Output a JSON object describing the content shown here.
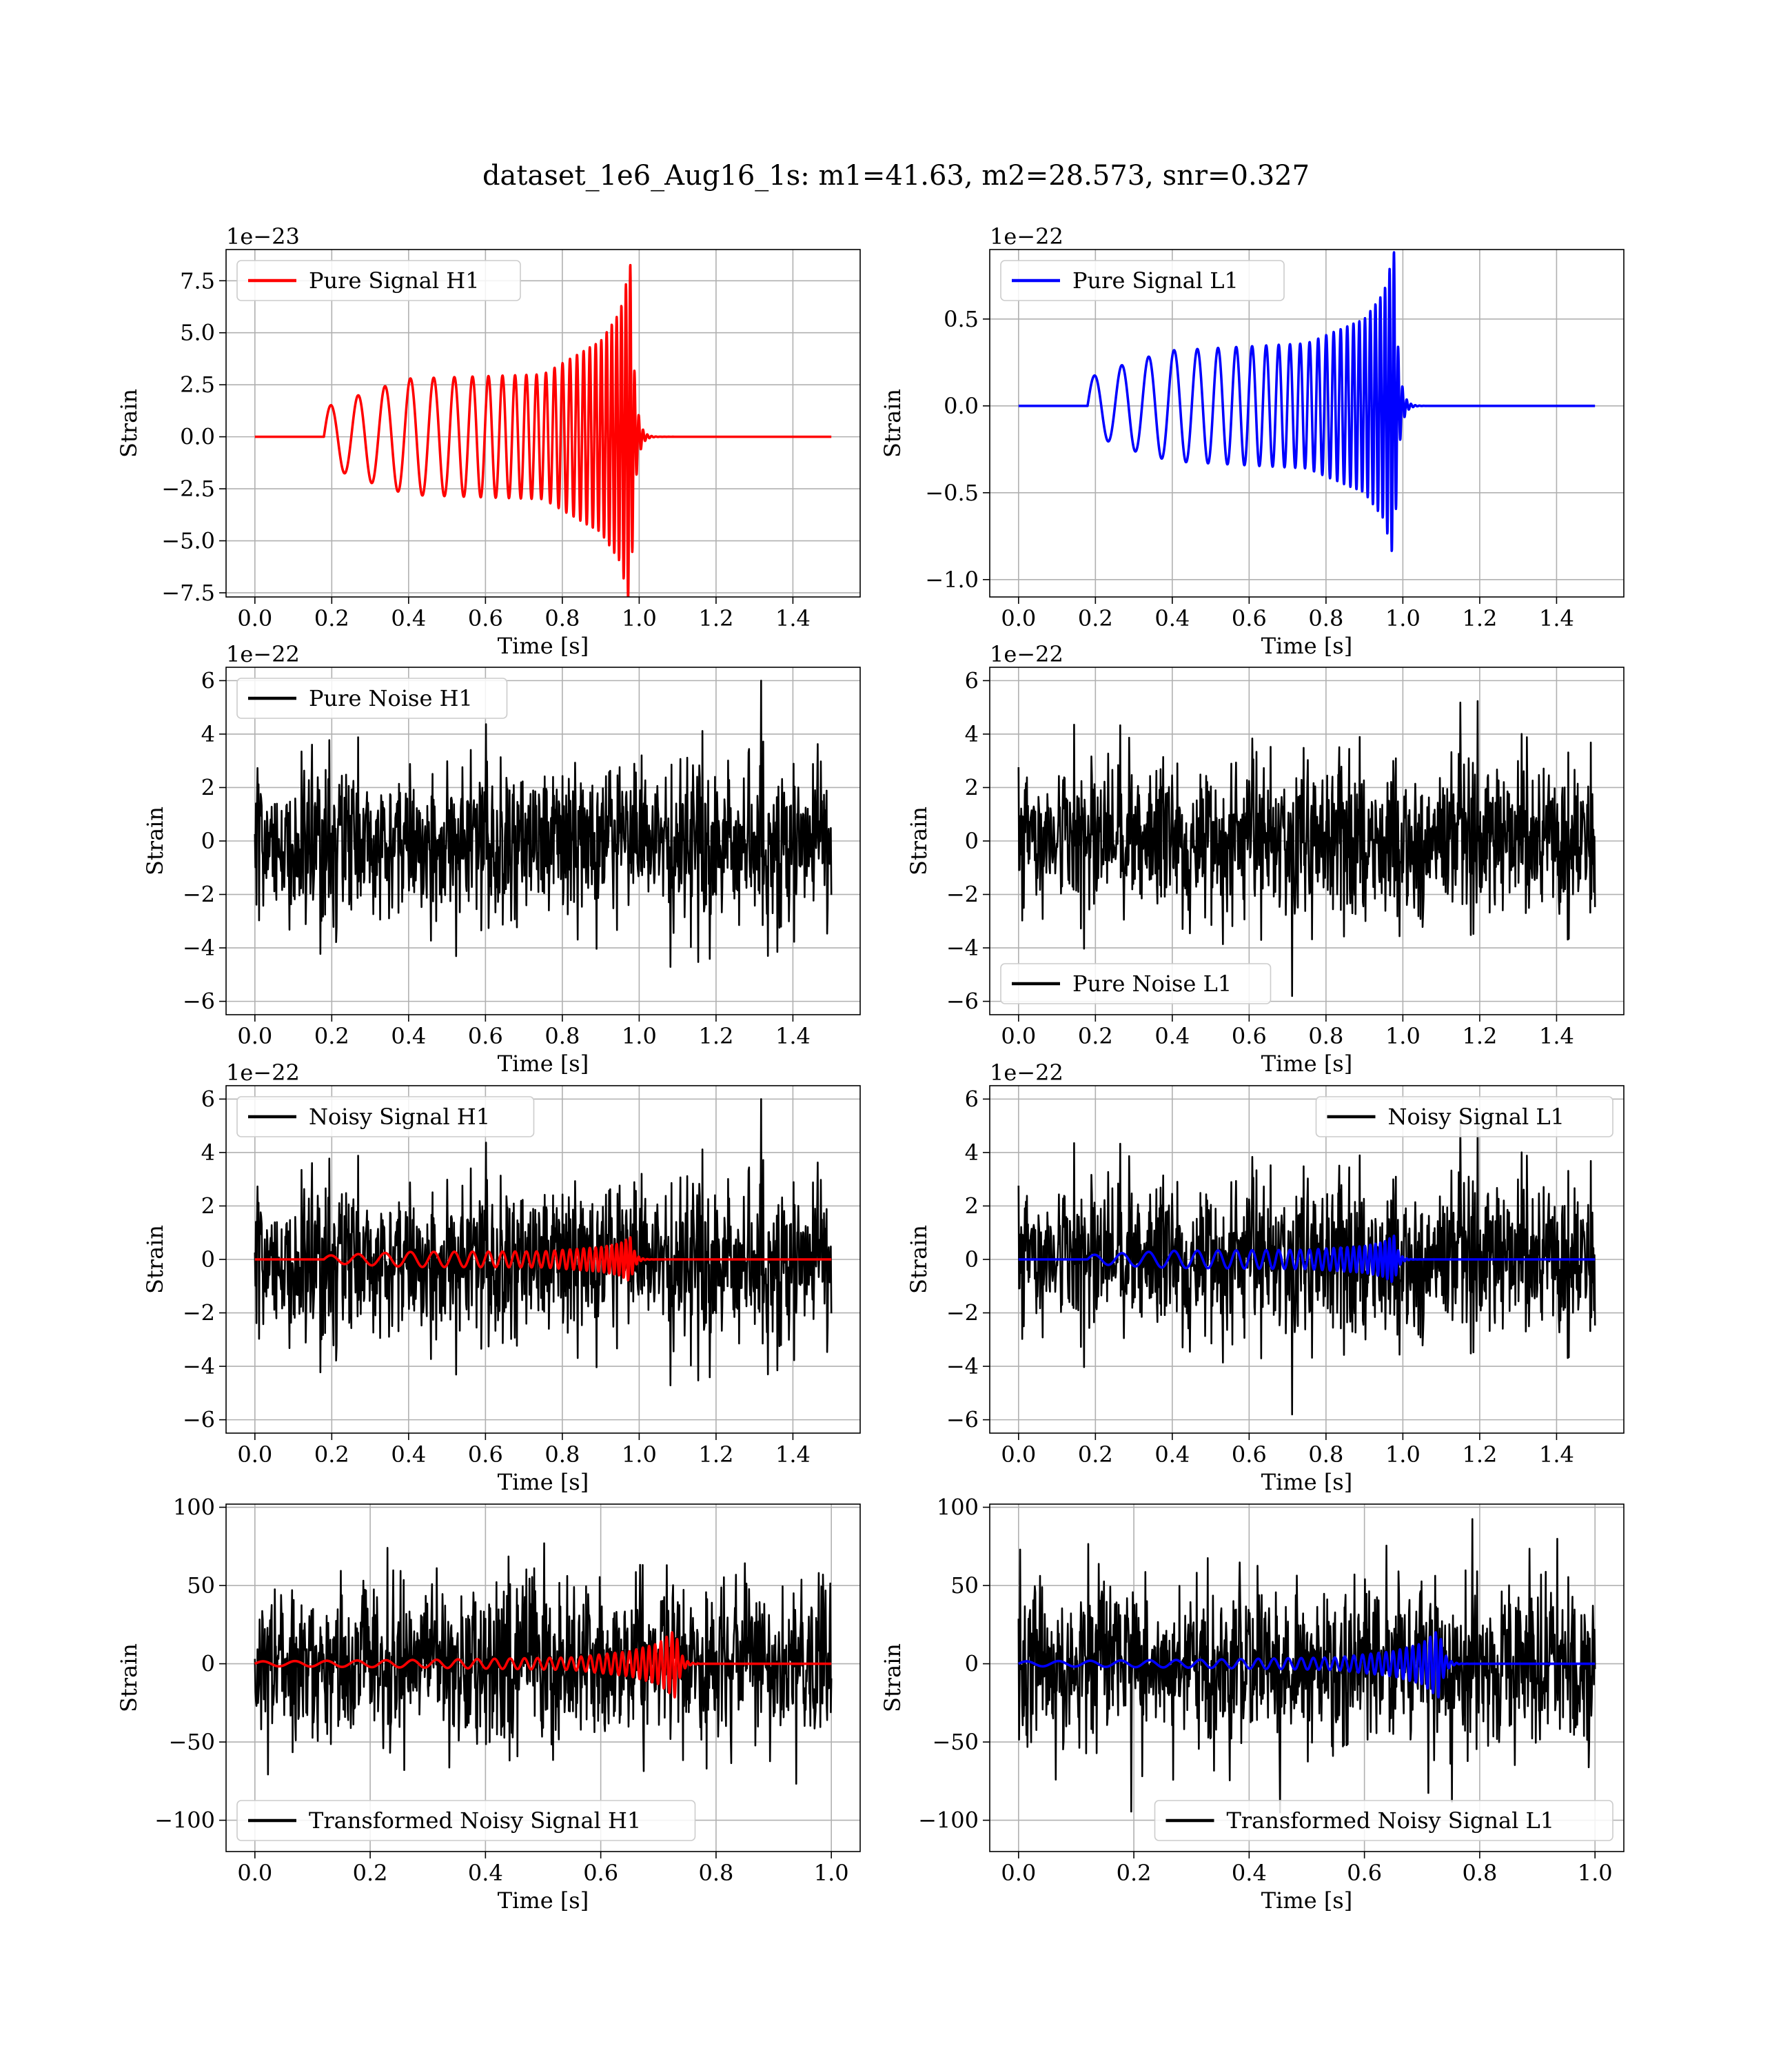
{
  "figure": {
    "title": "dataset_1e6_Aug16_1s: m1=41.63, m2=28.573, snr=0.327"
  },
  "colors": {
    "h1": "#ff0000",
    "l1": "#0000ff",
    "noise": "#000000"
  },
  "chart_data": [
    {
      "type": "line",
      "id": "pure-signal-h1",
      "xlabel": "Time [s]",
      "ylabel": "Strain",
      "offset": "1e−23",
      "xlim": [
        -0.075,
        1.575
      ],
      "ylim": [
        -7.7,
        9.0
      ],
      "xticks": [
        0.0,
        0.2,
        0.4,
        0.6,
        0.8,
        1.0,
        1.2,
        1.4
      ],
      "xtick_labels": [
        "0.0",
        "0.2",
        "0.4",
        "0.6",
        "0.8",
        "1.0",
        "1.2",
        "1.4"
      ],
      "yticks": [
        -7.5,
        -5.0,
        -2.5,
        0.0,
        2.5,
        5.0,
        7.5
      ],
      "ytick_labels": [
        "−7.5",
        "−5.0",
        "−2.5",
        "0.0",
        "2.5",
        "5.0",
        "7.5"
      ],
      "legend_position": "upper left",
      "series": [
        {
          "name": "Pure Signal H1",
          "color": "#ff0000",
          "kind": "chirp",
          "x_range": [
            0.0,
            1.5
          ],
          "t_start": 0.18,
          "t_merge": 0.978,
          "f0": 14,
          "f1": 90,
          "envelope": [
            [
              0.18,
              1.4
            ],
            [
              0.3,
              2.2
            ],
            [
              0.4,
              2.8
            ],
            [
              0.75,
              3.0
            ],
            [
              0.9,
              4.6
            ],
            [
              0.95,
              6.0
            ],
            [
              0.978,
              8.4
            ]
          ],
          "ringdown": 0.01,
          "seed": 11
        }
      ]
    },
    {
      "type": "line",
      "id": "pure-signal-l1",
      "xlabel": "Time [s]",
      "ylabel": "Strain",
      "offset": "1e−22",
      "xlim": [
        -0.075,
        1.575
      ],
      "ylim": [
        -1.1,
        0.9
      ],
      "xticks": [
        0.0,
        0.2,
        0.4,
        0.6,
        0.8,
        1.0,
        1.2,
        1.4
      ],
      "xtick_labels": [
        "0.0",
        "0.2",
        "0.4",
        "0.6",
        "0.8",
        "1.0",
        "1.2",
        "1.4"
      ],
      "yticks": [
        -1.0,
        -0.5,
        0.0,
        0.5
      ],
      "ytick_labels": [
        "−1.0",
        "−0.5",
        "0.0",
        "0.5"
      ],
      "legend_position": "upper left",
      "series": [
        {
          "name": "Pure Signal L1",
          "color": "#0000ff",
          "kind": "chirp",
          "x_range": [
            0.0,
            1.5
          ],
          "t_start": 0.18,
          "t_merge": 0.978,
          "f0": 14,
          "f1": 90,
          "envelope": [
            [
              0.18,
              0.16
            ],
            [
              0.3,
              0.26
            ],
            [
              0.4,
              0.32
            ],
            [
              0.75,
              0.36
            ],
            [
              0.9,
              0.5
            ],
            [
              0.95,
              0.65
            ],
            [
              0.978,
              0.9
            ]
          ],
          "ringdown": 0.01,
          "seed": 12
        }
      ]
    },
    {
      "type": "line",
      "id": "pure-noise-h1",
      "xlabel": "Time [s]",
      "ylabel": "Strain",
      "offset": "1e−22",
      "xlim": [
        -0.075,
        1.575
      ],
      "ylim": [
        -6.5,
        6.5
      ],
      "xticks": [
        0.0,
        0.2,
        0.4,
        0.6,
        0.8,
        1.0,
        1.2,
        1.4
      ],
      "xtick_labels": [
        "0.0",
        "0.2",
        "0.4",
        "0.6",
        "0.8",
        "1.0",
        "1.2",
        "1.4"
      ],
      "yticks": [
        -6,
        -4,
        -2,
        0,
        2,
        4,
        6
      ],
      "ytick_labels": [
        "−6",
        "−4",
        "−2",
        "0",
        "2",
        "4",
        "6"
      ],
      "legend_position": "upper left",
      "series": [
        {
          "name": "Pure Noise H1",
          "color": "#000000",
          "kind": "noise",
          "x_range": [
            0.0,
            1.5
          ],
          "sigma": 1.4,
          "max": 6.0,
          "seed": 101
        }
      ]
    },
    {
      "type": "line",
      "id": "pure-noise-l1",
      "xlabel": "Time [s]",
      "ylabel": "Strain",
      "offset": "1e−22",
      "xlim": [
        -0.075,
        1.575
      ],
      "ylim": [
        -6.5,
        6.5
      ],
      "xticks": [
        0.0,
        0.2,
        0.4,
        0.6,
        0.8,
        1.0,
        1.2,
        1.4
      ],
      "xtick_labels": [
        "0.0",
        "0.2",
        "0.4",
        "0.6",
        "0.8",
        "1.0",
        "1.2",
        "1.4"
      ],
      "yticks": [
        -6,
        -4,
        -2,
        0,
        2,
        4,
        6
      ],
      "ytick_labels": [
        "−6",
        "−4",
        "−2",
        "0",
        "2",
        "4",
        "6"
      ],
      "legend_position": "lower left",
      "series": [
        {
          "name": "Pure Noise L1",
          "color": "#000000",
          "kind": "noise",
          "x_range": [
            0.0,
            1.5
          ],
          "sigma": 1.4,
          "max": 5.8,
          "seed": 202
        }
      ]
    },
    {
      "type": "line",
      "id": "noisy-signal-h1",
      "xlabel": "Time [s]",
      "ylabel": "Strain",
      "offset": "1e−22",
      "xlim": [
        -0.075,
        1.575
      ],
      "ylim": [
        -6.5,
        6.5
      ],
      "xticks": [
        0.0,
        0.2,
        0.4,
        0.6,
        0.8,
        1.0,
        1.2,
        1.4
      ],
      "xtick_labels": [
        "0.0",
        "0.2",
        "0.4",
        "0.6",
        "0.8",
        "1.0",
        "1.2",
        "1.4"
      ],
      "yticks": [
        -6,
        -4,
        -2,
        0,
        2,
        4,
        6
      ],
      "ytick_labels": [
        "−6",
        "−4",
        "−2",
        "0",
        "2",
        "4",
        "6"
      ],
      "legend_position": "upper left",
      "series": [
        {
          "name": "Noisy Signal H1",
          "color": "#000000",
          "kind": "noise",
          "x_range": [
            0.0,
            1.5
          ],
          "sigma": 1.4,
          "max": 6.0,
          "seed": 101
        },
        {
          "color": "#ff0000",
          "kind": "chirp",
          "x_range": [
            0.0,
            1.5
          ],
          "t_start": 0.18,
          "t_merge": 0.978,
          "f0": 14,
          "f1": 90,
          "envelope": [
            [
              0.18,
              0.14
            ],
            [
              0.3,
              0.22
            ],
            [
              0.4,
              0.28
            ],
            [
              0.75,
              0.3
            ],
            [
              0.9,
              0.46
            ],
            [
              0.95,
              0.6
            ],
            [
              0.978,
              0.84
            ]
          ],
          "ringdown": 0.01,
          "seed": 13
        }
      ]
    },
    {
      "type": "line",
      "id": "noisy-signal-l1",
      "xlabel": "Time [s]",
      "ylabel": "Strain",
      "offset": "1e−22",
      "xlim": [
        -0.075,
        1.575
      ],
      "ylim": [
        -6.5,
        6.5
      ],
      "xticks": [
        0.0,
        0.2,
        0.4,
        0.6,
        0.8,
        1.0,
        1.2,
        1.4
      ],
      "xtick_labels": [
        "0.0",
        "0.2",
        "0.4",
        "0.6",
        "0.8",
        "1.0",
        "1.2",
        "1.4"
      ],
      "yticks": [
        -6,
        -4,
        -2,
        0,
        2,
        4,
        6
      ],
      "ytick_labels": [
        "−6",
        "−4",
        "−2",
        "0",
        "2",
        "4",
        "6"
      ],
      "legend_position": "upper right",
      "series": [
        {
          "name": "Noisy Signal L1",
          "color": "#000000",
          "kind": "noise",
          "x_range": [
            0.0,
            1.5
          ],
          "sigma": 1.4,
          "max": 5.8,
          "seed": 202
        },
        {
          "color": "#0000ff",
          "kind": "chirp",
          "x_range": [
            0.0,
            1.5
          ],
          "t_start": 0.18,
          "t_merge": 0.978,
          "f0": 14,
          "f1": 90,
          "envelope": [
            [
              0.18,
              0.16
            ],
            [
              0.3,
              0.26
            ],
            [
              0.4,
              0.32
            ],
            [
              0.75,
              0.36
            ],
            [
              0.9,
              0.5
            ],
            [
              0.95,
              0.65
            ],
            [
              0.978,
              0.9
            ]
          ],
          "ringdown": 0.01,
          "seed": 14
        }
      ]
    },
    {
      "type": "line",
      "id": "transformed-noisy-signal-h1",
      "xlabel": "Time [s]",
      "ylabel": "Strain",
      "offset": "",
      "xlim": [
        -0.05,
        1.05
      ],
      "ylim": [
        -120,
        102
      ],
      "xticks": [
        0.0,
        0.2,
        0.4,
        0.6,
        0.8,
        1.0
      ],
      "xtick_labels": [
        "0.0",
        "0.2",
        "0.4",
        "0.6",
        "0.8",
        "1.0"
      ],
      "yticks": [
        -100,
        -50,
        0,
        50,
        100
      ],
      "ytick_labels": [
        "−100",
        "−50",
        "0",
        "50",
        "100"
      ],
      "legend_position": "lower left",
      "series": [
        {
          "name": "Transformed Noisy Signal H1",
          "color": "#000000",
          "kind": "noise",
          "x_range": [
            0.0,
            1.0
          ],
          "sigma": 25,
          "max": 98,
          "seed": 303
        },
        {
          "color": "#ff0000",
          "kind": "chirp",
          "x_range": [
            0.0,
            1.0
          ],
          "t_start": 0.0,
          "t_merge": 0.73,
          "f0": 18,
          "f1": 110,
          "envelope": [
            [
              0.0,
              1.5
            ],
            [
              0.3,
              2.5
            ],
            [
              0.55,
              4.0
            ],
            [
              0.65,
              8.0
            ],
            [
              0.7,
              13.0
            ],
            [
              0.73,
              22.0
            ]
          ],
          "ringdown": 0.008,
          "seed": 15
        }
      ]
    },
    {
      "type": "line",
      "id": "transformed-noisy-signal-l1",
      "xlabel": "Time [s]",
      "ylabel": "Strain",
      "offset": "",
      "xlim": [
        -0.05,
        1.05
      ],
      "ylim": [
        -120,
        102
      ],
      "xticks": [
        0.0,
        0.2,
        0.4,
        0.6,
        0.8,
        1.0
      ],
      "xtick_labels": [
        "0.0",
        "0.2",
        "0.4",
        "0.6",
        "0.8",
        "1.0"
      ],
      "yticks": [
        -100,
        -50,
        0,
        50,
        100
      ],
      "ytick_labels": [
        "−100",
        "−50",
        "0",
        "50",
        "100"
      ],
      "legend_position": "lower right",
      "series": [
        {
          "name": "Transformed Noisy Signal L1",
          "color": "#000000",
          "kind": "noise",
          "x_range": [
            0.0,
            1.0
          ],
          "sigma": 25,
          "max": 95,
          "seed": 404
        },
        {
          "color": "#0000ff",
          "kind": "chirp",
          "x_range": [
            0.0,
            1.0
          ],
          "t_start": 0.0,
          "t_merge": 0.73,
          "f0": 18,
          "f1": 110,
          "envelope": [
            [
              0.0,
              1.5
            ],
            [
              0.3,
              2.5
            ],
            [
              0.55,
              4.0
            ],
            [
              0.65,
              8.0
            ],
            [
              0.7,
              13.0
            ],
            [
              0.73,
              22.0
            ]
          ],
          "ringdown": 0.008,
          "seed": 16
        }
      ]
    }
  ]
}
